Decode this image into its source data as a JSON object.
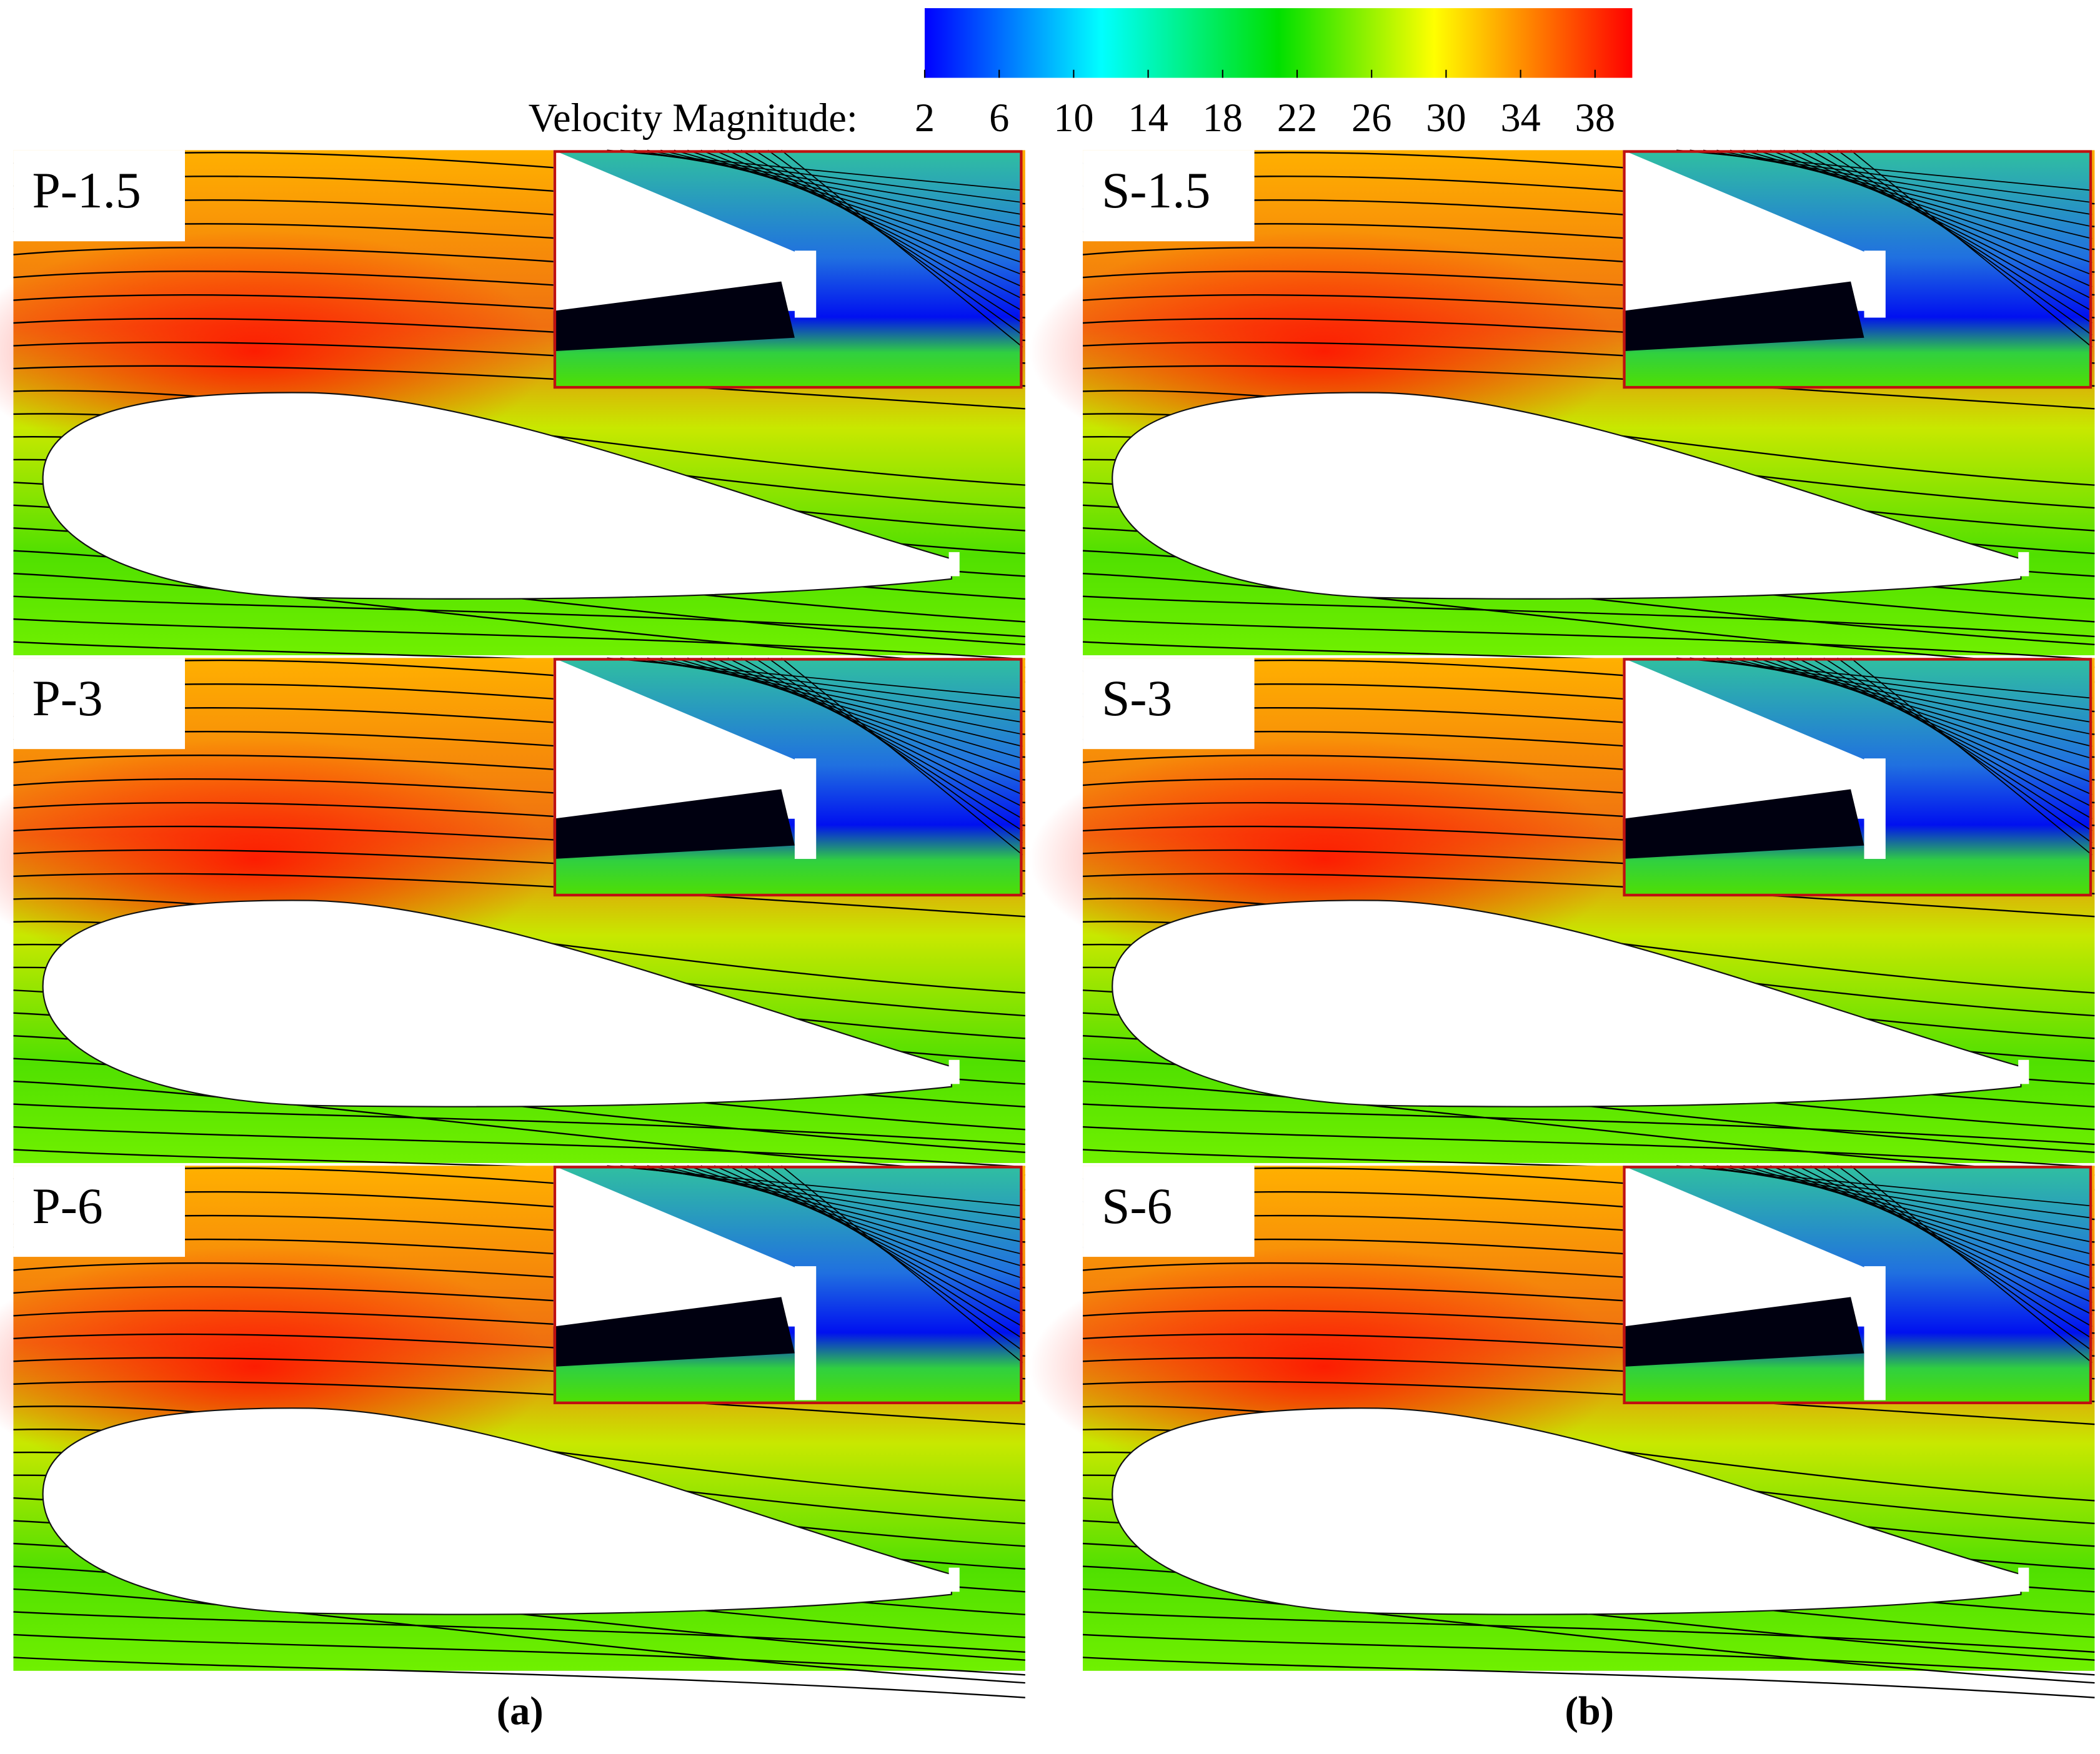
{
  "colorbar": {
    "title": "Velocity Magnitude:",
    "range": [
      2,
      40
    ],
    "ticks": [
      2,
      6,
      10,
      14,
      18,
      22,
      26,
      30,
      34,
      38
    ]
  },
  "panels": [
    {
      "label": "P-1.5"
    },
    {
      "label": "S-1.5"
    },
    {
      "label": "P-3"
    },
    {
      "label": "S-3"
    },
    {
      "label": "P-6"
    },
    {
      "label": "S-6"
    }
  ],
  "captions": [
    "(a)",
    "(b)"
  ]
}
